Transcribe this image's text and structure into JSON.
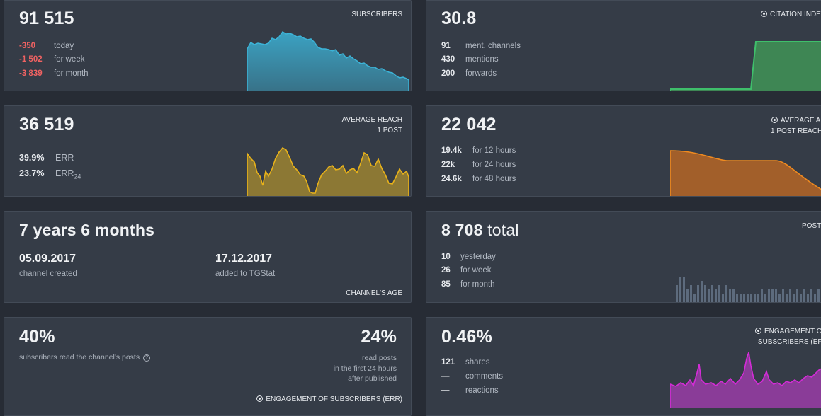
{
  "subscribers": {
    "value": "91 515",
    "title": "SUBSCRIBERS",
    "stats": [
      {
        "value": "-350",
        "label": "today"
      },
      {
        "value": "-1 502",
        "label": "for week"
      },
      {
        "value": "-3 839",
        "label": "for month"
      }
    ],
    "color": "#3cb4d8"
  },
  "citation": {
    "value": "30.8",
    "title": "CITATION INDE",
    "stats": [
      {
        "value": "91",
        "label": "ment. channels"
      },
      {
        "value": "430",
        "label": "mentions"
      },
      {
        "value": "200",
        "label": "forwards"
      }
    ],
    "color": "#3fbf6b"
  },
  "reach": {
    "value": "36 519",
    "title_line1": "AVERAGE REACH",
    "title_line2": "1 POST",
    "err_value": "39.9%",
    "err_label": "ERR",
    "err24_value": "23.7%",
    "err24_label": "ERR",
    "err24_sub": "24",
    "color": "#e8b21a"
  },
  "avg_reach": {
    "value": "22 042",
    "title_line1": "AVERAGE AI",
    "title_line2": "1 POST REACH",
    "stats": [
      {
        "value": "19.4k",
        "label": "for 12 hours"
      },
      {
        "value": "22k",
        "label": "for 24 hours"
      },
      {
        "value": "24.6k",
        "label": "for 48 hours"
      }
    ],
    "color": "#ef8a1f"
  },
  "age": {
    "value": "7 years 6 months",
    "created_date": "05.09.2017",
    "created_label": "channel created",
    "added_date": "17.12.2017",
    "added_label": "added to TGStat",
    "title": "CHANNEL'S AGE"
  },
  "posts": {
    "value": "8 708",
    "unit": "total",
    "title": "POST",
    "stats": [
      {
        "value": "10",
        "label": "yesterday"
      },
      {
        "value": "26",
        "label": "for week"
      },
      {
        "value": "85",
        "label": "for month"
      }
    ],
    "bars": [
      4,
      6,
      6,
      3,
      4,
      2,
      4,
      5,
      4,
      3,
      4,
      3,
      4,
      2,
      4,
      3,
      3,
      2,
      2,
      2,
      2,
      2,
      2,
      2,
      3,
      2,
      3,
      3,
      3,
      2,
      3,
      2,
      3,
      2,
      3,
      2,
      3,
      2,
      3,
      2,
      3
    ],
    "color": "#5d6b7d"
  },
  "read": {
    "value": "40%",
    "label": "subscribers read the channel's posts",
    "help_icon": "?",
    "right_value": "24%",
    "right_line1": "read posts",
    "right_line2": "in the first 24 hours",
    "right_line3": "after published",
    "title": "ENGAGEMENT OF SUBSCRIBERS (ERR)"
  },
  "engagement": {
    "value": "0.46%",
    "title_line1": "ENGAGEMENT O",
    "title_line2": "SUBSCRIBERS (EF",
    "stats": [
      {
        "value": "121",
        "label": "shares"
      },
      {
        "value": "—",
        "label": "comments"
      },
      {
        "value": "—",
        "label": "reactions"
      }
    ],
    "color": "#d52bd8"
  }
}
